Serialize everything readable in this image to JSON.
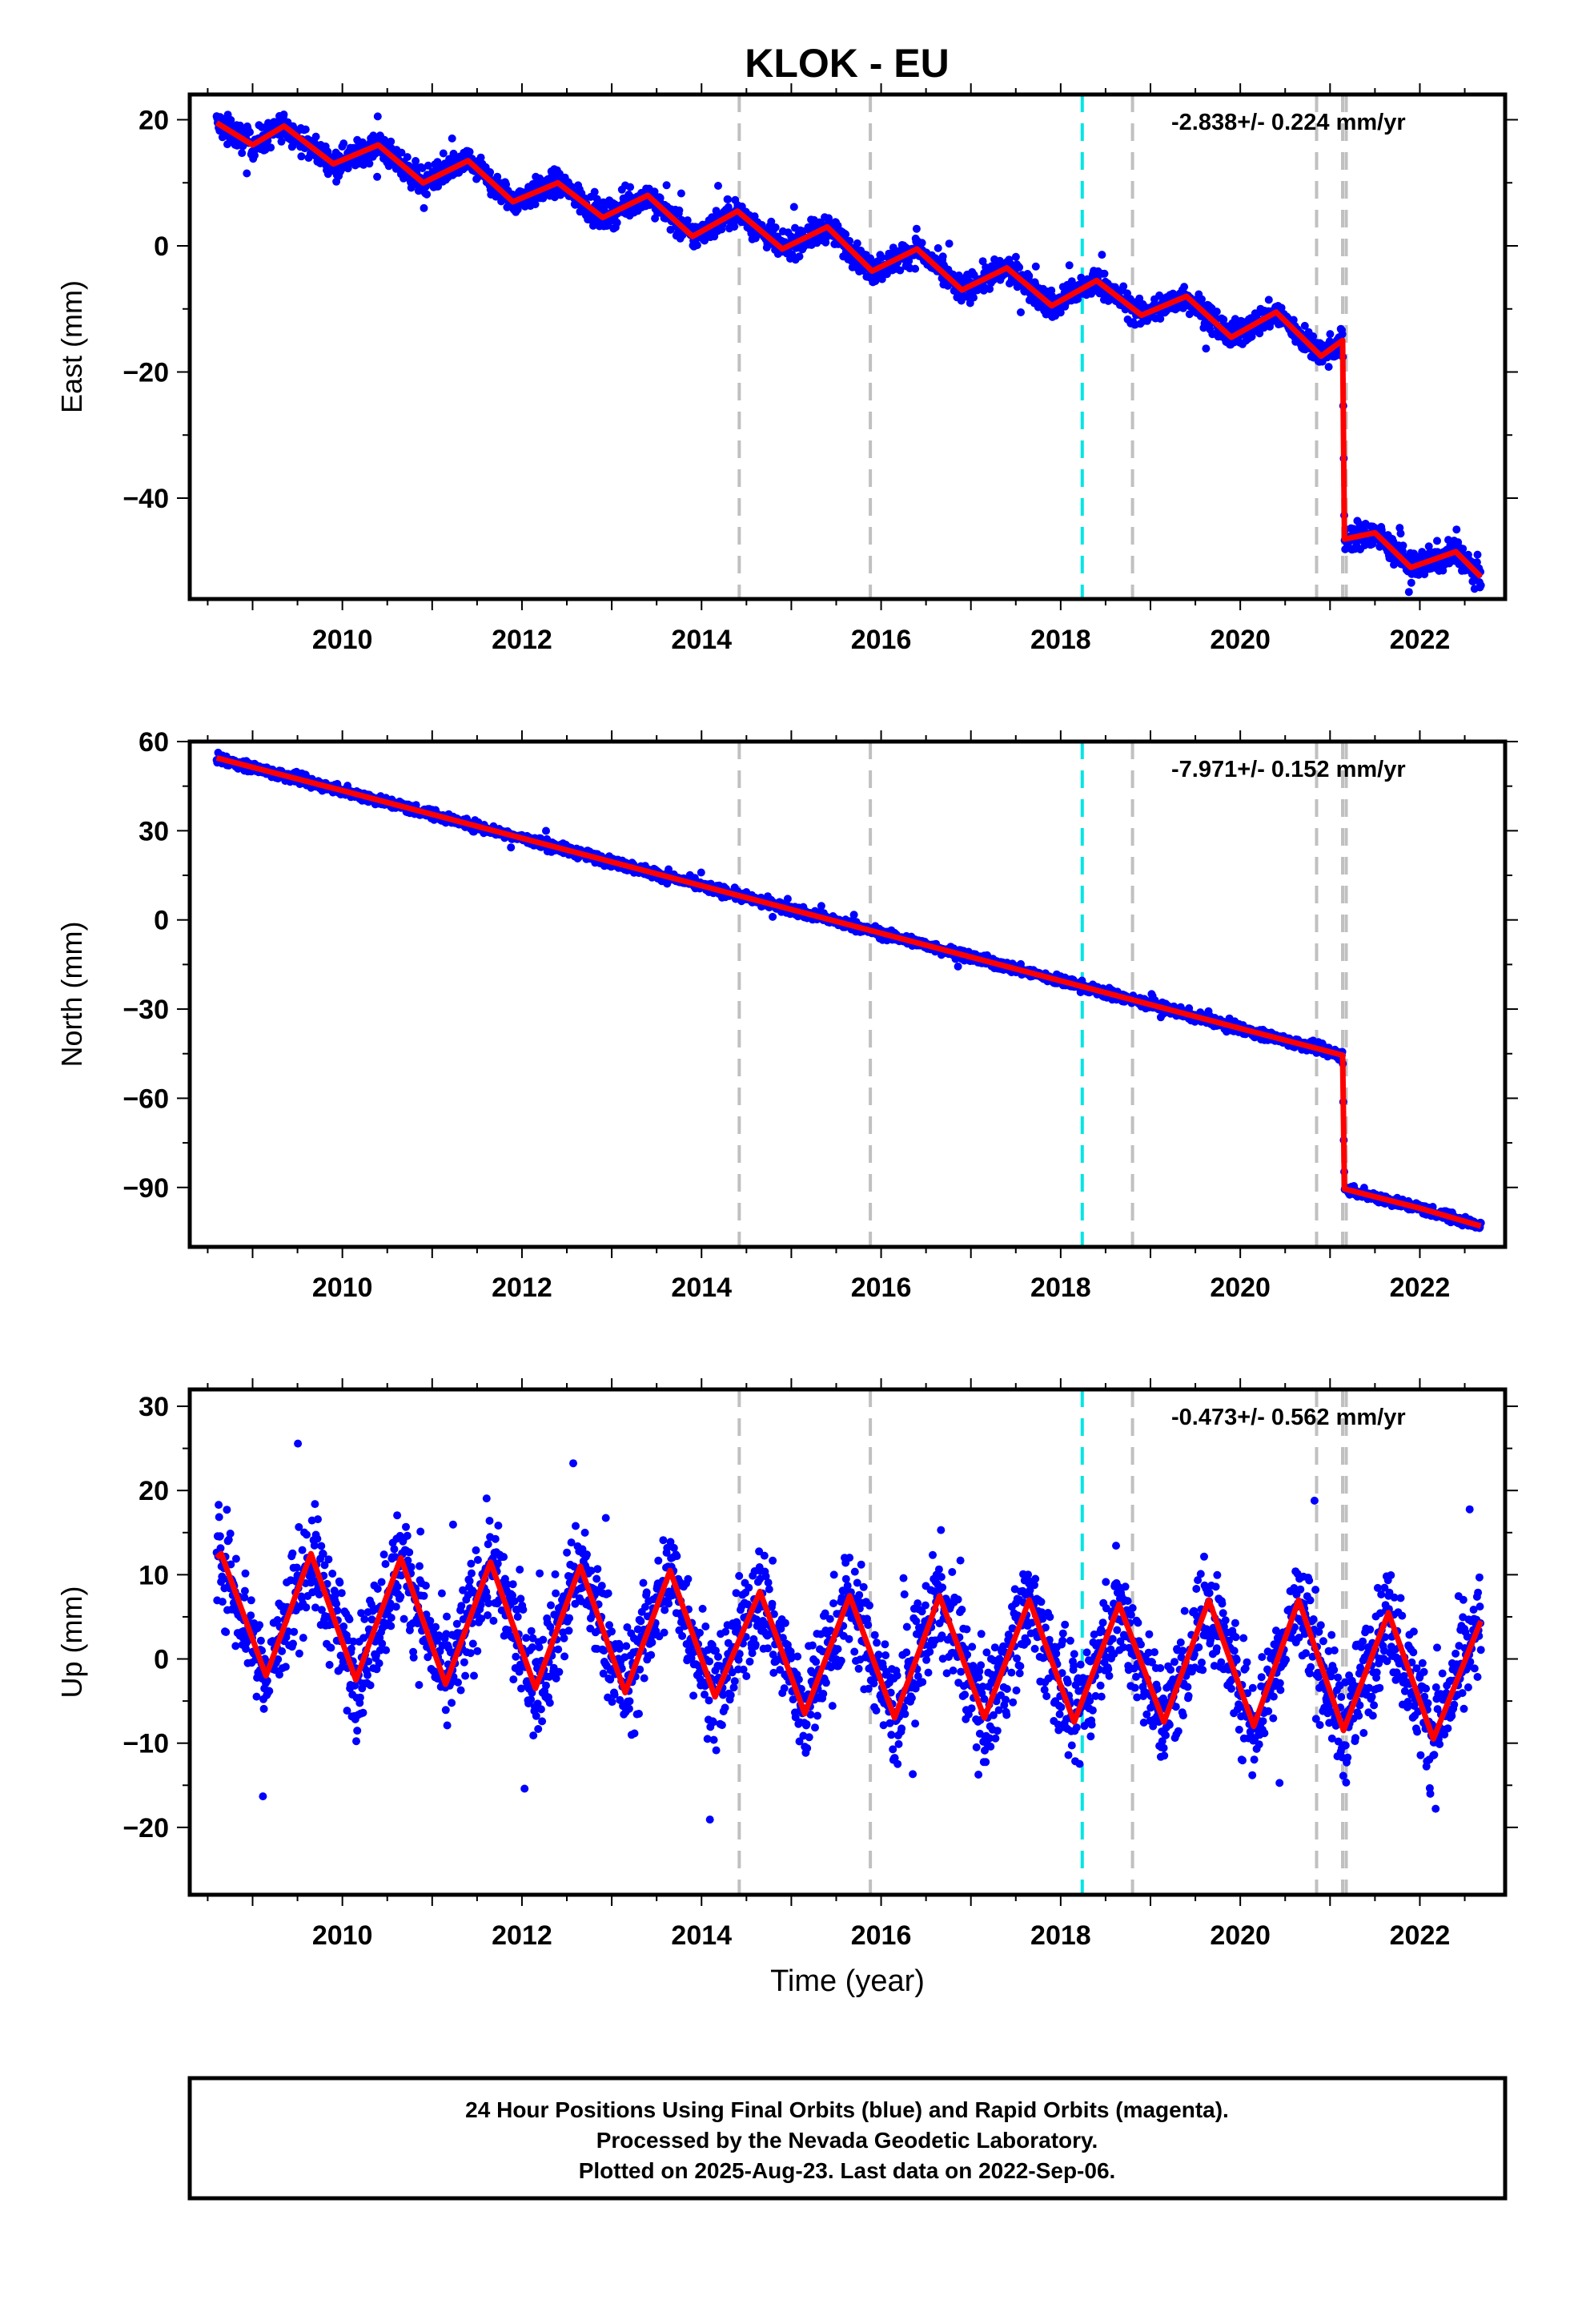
{
  "title": "KLOK - EU",
  "colors": {
    "final_orbit_points": "#0000ff",
    "model_fit": "#ff0000",
    "offset_line_equipment": "#c0c0c0",
    "offset_line_event": "#00e5e5",
    "frame": "#000000"
  },
  "chart_data": [
    {
      "type": "scatter",
      "component": "East",
      "ylabel": "East (mm)",
      "xlabel": "",
      "rate_text": "-2.838+/- 0.224 mm/yr",
      "xlim": [
        2008.3,
        2022.95
      ],
      "ylim": [
        -56,
        24
      ],
      "x_ticks": [
        2010,
        2012,
        2014,
        2016,
        2018,
        2020,
        2022
      ],
      "y_ticks": [
        20,
        0,
        -20,
        -40
      ],
      "y_tick_labels": [
        "20",
        "0",
        "−20",
        "−40"
      ],
      "start_value": 18.5,
      "end_value": -53.5,
      "seasonal_amplitude": 2.5,
      "scatter_noise": 1.5,
      "offset": {
        "epoch": 2021.15,
        "size": -29.0
      },
      "model_fit": {
        "x": [
          2008.6,
          2009.0,
          2009.35,
          2009.9,
          2010.4,
          2010.9,
          2011.4,
          2011.9,
          2012.4,
          2012.9,
          2013.4,
          2013.9,
          2014.4,
          2014.9,
          2015.4,
          2015.9,
          2016.4,
          2016.9,
          2017.4,
          2017.9,
          2018.4,
          2018.9,
          2019.4,
          2019.9,
          2020.4,
          2020.9,
          2021.14,
          2021.16,
          2021.5,
          2021.9,
          2022.4,
          2022.68
        ],
        "y": [
          19.5,
          16.0,
          19.0,
          13.0,
          16.0,
          10.0,
          13.5,
          7.0,
          10.0,
          4.5,
          8.0,
          1.5,
          5.5,
          -0.5,
          3.0,
          -4.0,
          -0.5,
          -7.0,
          -3.5,
          -9.5,
          -5.5,
          -11.0,
          -8.0,
          -14.5,
          -10.5,
          -17.5,
          -15.0,
          -46.5,
          -45.5,
          -51.0,
          -48.5,
          -52.5
        ]
      }
    },
    {
      "type": "scatter",
      "component": "North",
      "ylabel": "North (mm)",
      "xlabel": "",
      "rate_text": "-7.971+/- 0.152 mm/yr",
      "xlim": [
        2008.3,
        2022.95
      ],
      "ylim": [
        -110,
        60
      ],
      "x_ticks": [
        2010,
        2012,
        2014,
        2016,
        2018,
        2020,
        2022
      ],
      "y_ticks": [
        60,
        30,
        0,
        -30,
        -60,
        -90
      ],
      "y_tick_labels": [
        "60",
        "30",
        "0",
        "−30",
        "−60",
        "−90"
      ],
      "start_value": 54.5,
      "end_value": -104.0,
      "seasonal_amplitude": 0.8,
      "scatter_noise": 1.2,
      "offset": {
        "epoch": 2021.15,
        "size": -45.0
      },
      "model_fit": {
        "x": [
          2008.6,
          2010.0,
          2012.0,
          2014.0,
          2016.0,
          2018.0,
          2020.0,
          2021.14,
          2021.16,
          2022.0,
          2022.68
        ],
        "y": [
          54.5,
          43.5,
          27.5,
          11.5,
          -4.5,
          -20.5,
          -36.5,
          -45.5,
          -90.5,
          -97.0,
          -103.0
        ]
      }
    },
    {
      "type": "scatter",
      "component": "Up",
      "ylabel": "Up (mm)",
      "xlabel": "Time (year)",
      "rate_text": "-0.473+/- 0.562 mm/yr",
      "xlim": [
        2008.3,
        2022.95
      ],
      "ylim": [
        -28,
        32
      ],
      "x_ticks": [
        2010,
        2012,
        2014,
        2016,
        2018,
        2020,
        2022
      ],
      "y_ticks": [
        30,
        20,
        10,
        0,
        -10,
        -20
      ],
      "y_tick_labels": [
        "30",
        "20",
        "10",
        "0",
        "−10",
        "−20"
      ],
      "start_value": 5.0,
      "end_value": -2.5,
      "seasonal_amplitude": 7.5,
      "scatter_noise": 4.5,
      "offset": {
        "epoch": 2021.15,
        "size": 0
      },
      "model_fit": {
        "x": [
          2008.6,
          2008.65,
          2009.15,
          2009.65,
          2010.15,
          2010.65,
          2011.15,
          2011.65,
          2012.15,
          2012.65,
          2013.15,
          2013.65,
          2014.15,
          2014.65,
          2015.15,
          2015.65,
          2016.15,
          2016.65,
          2017.15,
          2017.65,
          2018.15,
          2018.65,
          2019.15,
          2019.65,
          2020.15,
          2020.65,
          2021.15,
          2021.65,
          2022.15,
          2022.68
        ],
        "y": [
          12.0,
          12.5,
          -2.0,
          12.5,
          -2.5,
          12.0,
          -3.0,
          11.5,
          -3.5,
          11.0,
          -4.0,
          10.5,
          -4.5,
          8.0,
          -6.5,
          7.5,
          -7.0,
          7.5,
          -7.0,
          7.0,
          -7.5,
          6.5,
          -7.5,
          7.0,
          -8.0,
          7.0,
          -8.5,
          5.5,
          -9.5,
          4.5
        ]
      }
    }
  ],
  "offset_epochs": [
    {
      "year": 2014.42,
      "kind": "equipment"
    },
    {
      "year": 2015.88,
      "kind": "equipment"
    },
    {
      "year": 2018.24,
      "kind": "event"
    },
    {
      "year": 2018.8,
      "kind": "equipment"
    },
    {
      "year": 2020.85,
      "kind": "equipment"
    },
    {
      "year": 2021.14,
      "kind": "equipment"
    },
    {
      "year": 2021.18,
      "kind": "equipment"
    }
  ],
  "footer_lines": [
    "24 Hour Positions Using Final Orbits (blue) and Rapid Orbits (magenta).",
    "Processed by the Nevada Geodetic Laboratory.",
    "Plotted on 2025-Aug-23. Last data on 2022-Sep-06."
  ]
}
